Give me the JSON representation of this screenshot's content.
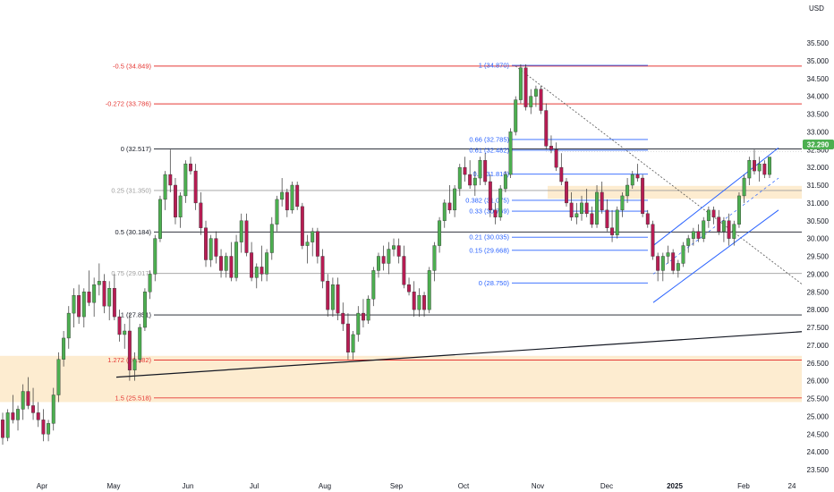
{
  "chart_data": {
    "type": "candlestick",
    "currency_label": "USD",
    "last_price": "32.290",
    "y_ticks": [
      "35.500",
      "35.000",
      "34.500",
      "34.000",
      "33.500",
      "33.000",
      "32.500",
      "32.000",
      "31.500",
      "31.000",
      "30.500",
      "30.000",
      "29.500",
      "29.000",
      "28.500",
      "28.000",
      "27.500",
      "27.000",
      "26.500",
      "26.000",
      "25.500",
      "25.000",
      "24.500",
      "24.000",
      "23.500"
    ],
    "x_ticks": [
      "Apr",
      "May",
      "Jun",
      "Jul",
      "Aug",
      "Sep",
      "Oct",
      "Nov",
      "Dec",
      "2025",
      "Feb",
      "24"
    ],
    "ylim": [
      23.35,
      35.75
    ],
    "colors": {
      "up": "#4caf50",
      "down": "#b71c53",
      "fib_red": "#e53935",
      "fib_blue": "#2962ff",
      "zone": "#fde7c4",
      "last_price_bg": "#4caf50"
    },
    "big_fib_levels": [
      {
        "label": "-0.5 (34.849)",
        "price": 34.849,
        "color": "#e53935"
      },
      {
        "label": "-0.272 (33.786)",
        "price": 33.786,
        "color": "#e53935"
      },
      {
        "label": "0 (32.517)",
        "price": 32.517,
        "color": "#131722"
      },
      {
        "label": "0.25 (31.350)",
        "price": 31.35,
        "color": "#9e9e9e"
      },
      {
        "label": "0.5 (30.184)",
        "price": 30.184,
        "color": "#131722"
      },
      {
        "label": "0.75 (29.017)",
        "price": 29.017,
        "color": "#9e9e9e"
      },
      {
        "label": "1 (27.851)",
        "price": 27.851,
        "color": "#131722"
      },
      {
        "label": "1.272 (26.582)",
        "price": 26.582,
        "color": "#e53935"
      },
      {
        "label": "1.5 (25.518)",
        "price": 25.518,
        "color": "#e53935"
      }
    ],
    "small_fib_levels": [
      {
        "label": "1 (34.870)",
        "price": 34.87
      },
      {
        "label": "0.66 (32.785)",
        "price": 32.785
      },
      {
        "label": "0.61 (32.482)",
        "price": 32.482
      },
      {
        "label": "0.5 (31.810)",
        "price": 31.81
      },
      {
        "label": "0.382 (31.075)",
        "price": 31.075
      },
      {
        "label": "0.33 (30.769)",
        "price": 30.769
      },
      {
        "label": "0.21 (30.035)",
        "price": 30.035
      },
      {
        "label": "0.15 (29.668)",
        "price": 29.668
      },
      {
        "label": "0 (28.750)",
        "price": 28.75
      }
    ],
    "zones": [
      {
        "from": 25.4,
        "to": 26.7
      },
      {
        "from": 31.12,
        "to": 31.48
      }
    ],
    "series": [
      {
        "name": "candles",
        "ohlc": [
          [
            24.9,
            25.1,
            24.2,
            24.4
          ],
          [
            24.4,
            25.2,
            24.3,
            25.1
          ],
          [
            25.1,
            25.6,
            24.8,
            24.9
          ],
          [
            24.9,
            25.3,
            24.6,
            25.2
          ],
          [
            25.2,
            25.9,
            24.9,
            25.7
          ],
          [
            25.7,
            26.1,
            25.2,
            25.3
          ],
          [
            25.3,
            25.8,
            24.9,
            25.1
          ],
          [
            25.1,
            25.4,
            24.7,
            24.9
          ],
          [
            24.9,
            25.2,
            24.3,
            24.5
          ],
          [
            24.5,
            24.9,
            24.3,
            24.8
          ],
          [
            24.8,
            25.8,
            24.6,
            25.6
          ],
          [
            25.6,
            26.8,
            25.4,
            26.6
          ],
          [
            26.6,
            27.4,
            26.4,
            27.2
          ],
          [
            27.2,
            28.1,
            26.9,
            27.9
          ],
          [
            27.9,
            28.6,
            27.5,
            28.4
          ],
          [
            28.4,
            28.7,
            27.6,
            27.8
          ],
          [
            27.8,
            28.6,
            27.5,
            28.5
          ],
          [
            28.5,
            29.1,
            28.1,
            28.2
          ],
          [
            28.2,
            28.9,
            27.8,
            28.7
          ],
          [
            28.7,
            29.3,
            28.4,
            28.8
          ],
          [
            28.8,
            29.0,
            27.9,
            28.1
          ],
          [
            28.1,
            28.8,
            27.7,
            28.6
          ],
          [
            28.6,
            29.0,
            27.7,
            27.8
          ],
          [
            27.8,
            28.0,
            27.1,
            27.3
          ],
          [
            27.3,
            27.6,
            26.9,
            27.4
          ],
          [
            27.4,
            27.9,
            26.0,
            26.3
          ],
          [
            26.3,
            26.8,
            26.0,
            26.6
          ],
          [
            26.6,
            27.6,
            26.5,
            27.5
          ],
          [
            27.5,
            28.6,
            27.4,
            28.5
          ],
          [
            28.5,
            29.1,
            28.3,
            29.0
          ],
          [
            29.0,
            30.1,
            28.8,
            30.0
          ],
          [
            30.0,
            31.2,
            29.9,
            31.1
          ],
          [
            31.1,
            31.9,
            30.8,
            31.8
          ],
          [
            31.8,
            32.5,
            31.3,
            31.5
          ],
          [
            31.5,
            31.7,
            30.4,
            30.6
          ],
          [
            30.6,
            31.3,
            30.3,
            31.2
          ],
          [
            31.2,
            32.2,
            31.0,
            32.1
          ],
          [
            32.1,
            32.3,
            31.8,
            31.9
          ],
          [
            31.9,
            32.1,
            30.8,
            31.0
          ],
          [
            31.0,
            31.3,
            30.1,
            30.3
          ],
          [
            30.3,
            30.5,
            29.2,
            29.4
          ],
          [
            29.4,
            30.1,
            29.2,
            30.0
          ],
          [
            30.0,
            30.2,
            29.3,
            29.5
          ],
          [
            29.5,
            29.7,
            28.9,
            29.1
          ],
          [
            29.1,
            29.6,
            28.9,
            29.5
          ],
          [
            29.5,
            29.9,
            28.8,
            28.9
          ],
          [
            28.9,
            30.1,
            28.8,
            29.9
          ],
          [
            29.9,
            30.7,
            29.6,
            30.5
          ],
          [
            30.5,
            30.7,
            29.5,
            29.6
          ],
          [
            29.6,
            29.9,
            28.8,
            28.9
          ],
          [
            28.9,
            29.3,
            28.6,
            29.2
          ],
          [
            29.2,
            29.8,
            28.8,
            29.0
          ],
          [
            29.0,
            29.7,
            28.8,
            29.6
          ],
          [
            29.6,
            30.6,
            29.4,
            30.4
          ],
          [
            30.4,
            31.2,
            30.2,
            31.1
          ],
          [
            31.1,
            31.7,
            30.9,
            31.3
          ],
          [
            31.3,
            31.4,
            30.6,
            30.8
          ],
          [
            30.8,
            31.6,
            30.7,
            31.5
          ],
          [
            31.5,
            31.6,
            30.8,
            30.9
          ],
          [
            30.9,
            31.0,
            29.7,
            29.8
          ],
          [
            29.8,
            30.1,
            29.3,
            29.9
          ],
          [
            29.9,
            30.3,
            29.5,
            30.2
          ],
          [
            30.2,
            30.3,
            29.3,
            29.5
          ],
          [
            29.5,
            29.7,
            28.6,
            28.8
          ],
          [
            28.8,
            29.0,
            27.8,
            28.0
          ],
          [
            28.0,
            28.9,
            27.8,
            28.7
          ],
          [
            28.7,
            28.9,
            27.7,
            27.9
          ],
          [
            27.9,
            28.2,
            27.4,
            27.6
          ],
          [
            27.6,
            27.9,
            26.6,
            26.8
          ],
          [
            26.8,
            27.4,
            26.6,
            27.3
          ],
          [
            27.3,
            28.1,
            27.1,
            27.9
          ],
          [
            27.9,
            28.3,
            27.5,
            27.7
          ],
          [
            27.7,
            28.4,
            27.6,
            28.3
          ],
          [
            28.3,
            29.2,
            28.1,
            29.1
          ],
          [
            29.1,
            29.6,
            28.9,
            29.5
          ],
          [
            29.5,
            29.8,
            29.1,
            29.3
          ],
          [
            29.3,
            29.9,
            29.0,
            29.7
          ],
          [
            29.7,
            30.0,
            29.5,
            29.8
          ],
          [
            29.8,
            30.0,
            29.3,
            29.5
          ],
          [
            29.5,
            29.8,
            28.6,
            28.7
          ],
          [
            28.7,
            28.9,
            28.4,
            28.5
          ],
          [
            28.5,
            28.8,
            27.8,
            28.0
          ],
          [
            28.0,
            28.6,
            27.8,
            28.4
          ],
          [
            28.4,
            28.5,
            27.8,
            28.0
          ],
          [
            28.0,
            29.2,
            27.9,
            29.1
          ],
          [
            29.1,
            29.9,
            28.8,
            29.8
          ],
          [
            29.8,
            30.6,
            29.6,
            30.5
          ],
          [
            30.5,
            31.1,
            30.3,
            31.0
          ],
          [
            31.0,
            31.5,
            30.7,
            30.8
          ],
          [
            30.8,
            31.5,
            30.6,
            31.4
          ],
          [
            31.4,
            32.1,
            31.2,
            32.0
          ],
          [
            32.0,
            32.3,
            31.6,
            31.8
          ],
          [
            31.8,
            32.2,
            31.4,
            31.5
          ],
          [
            31.5,
            31.9,
            31.2,
            31.7
          ],
          [
            31.7,
            32.3,
            31.5,
            32.2
          ],
          [
            32.2,
            32.4,
            31.5,
            31.6
          ],
          [
            31.6,
            31.8,
            30.6,
            30.8
          ],
          [
            30.8,
            31.0,
            30.4,
            30.6
          ],
          [
            30.6,
            31.5,
            30.5,
            31.4
          ],
          [
            31.4,
            31.9,
            31.3,
            31.8
          ],
          [
            31.8,
            33.1,
            31.7,
            33.0
          ],
          [
            33.0,
            34.0,
            32.9,
            33.9
          ],
          [
            33.9,
            34.9,
            33.8,
            34.8
          ],
          [
            34.8,
            34.9,
            33.6,
            33.7
          ],
          [
            33.7,
            34.2,
            33.5,
            34.0
          ],
          [
            34.0,
            34.3,
            33.7,
            34.2
          ],
          [
            34.2,
            34.3,
            33.5,
            33.6
          ],
          [
            33.6,
            33.8,
            32.5,
            32.6
          ],
          [
            32.6,
            32.9,
            32.4,
            32.5
          ],
          [
            32.5,
            32.7,
            31.9,
            32.0
          ],
          [
            32.0,
            32.4,
            31.5,
            31.6
          ],
          [
            31.6,
            31.7,
            30.9,
            31.0
          ],
          [
            31.0,
            31.3,
            30.5,
            30.6
          ],
          [
            30.6,
            31.0,
            30.4,
            30.7
          ],
          [
            30.7,
            31.2,
            30.5,
            31.0
          ],
          [
            31.0,
            31.4,
            30.6,
            30.7
          ],
          [
            30.7,
            30.9,
            30.3,
            30.4
          ],
          [
            30.4,
            31.5,
            30.3,
            31.3
          ],
          [
            31.3,
            31.6,
            30.7,
            30.8
          ],
          [
            30.8,
            31.1,
            30.2,
            30.3
          ],
          [
            30.3,
            30.8,
            29.9,
            30.1
          ],
          [
            30.1,
            30.9,
            30.0,
            30.8
          ],
          [
            30.8,
            31.3,
            30.6,
            31.2
          ],
          [
            31.2,
            31.7,
            31.0,
            31.5
          ],
          [
            31.5,
            31.9,
            31.4,
            31.8
          ],
          [
            31.8,
            32.1,
            31.6,
            31.7
          ],
          [
            31.7,
            31.8,
            30.6,
            30.7
          ],
          [
            30.7,
            30.8,
            30.3,
            30.4
          ],
          [
            30.4,
            30.5,
            29.4,
            29.5
          ],
          [
            29.5,
            29.6,
            28.8,
            29.1
          ],
          [
            29.1,
            29.6,
            28.8,
            29.5
          ],
          [
            29.5,
            29.8,
            29.3,
            29.6
          ],
          [
            29.6,
            29.7,
            29.0,
            29.1
          ],
          [
            29.1,
            29.4,
            28.9,
            29.3
          ],
          [
            29.3,
            29.9,
            29.2,
            29.8
          ],
          [
            29.8,
            30.1,
            29.6,
            30.0
          ],
          [
            30.0,
            30.3,
            29.8,
            30.2
          ],
          [
            30.2,
            30.4,
            29.9,
            30.0
          ],
          [
            30.0,
            30.6,
            29.9,
            30.5
          ],
          [
            30.5,
            30.9,
            30.3,
            30.8
          ],
          [
            30.8,
            30.9,
            30.4,
            30.6
          ],
          [
            30.6,
            30.8,
            30.1,
            30.2
          ],
          [
            30.2,
            30.6,
            29.9,
            30.5
          ],
          [
            30.5,
            30.7,
            29.8,
            30.0
          ],
          [
            30.0,
            30.5,
            29.8,
            30.4
          ],
          [
            30.4,
            31.3,
            30.3,
            31.2
          ],
          [
            31.2,
            31.8,
            31.0,
            31.7
          ],
          [
            31.7,
            32.3,
            31.5,
            32.2
          ],
          [
            32.2,
            32.5,
            31.8,
            31.9
          ],
          [
            31.9,
            32.3,
            31.6,
            32.1
          ],
          [
            32.1,
            32.2,
            31.7,
            31.8
          ],
          [
            31.8,
            32.3,
            31.7,
            32.29
          ]
        ]
      }
    ]
  }
}
